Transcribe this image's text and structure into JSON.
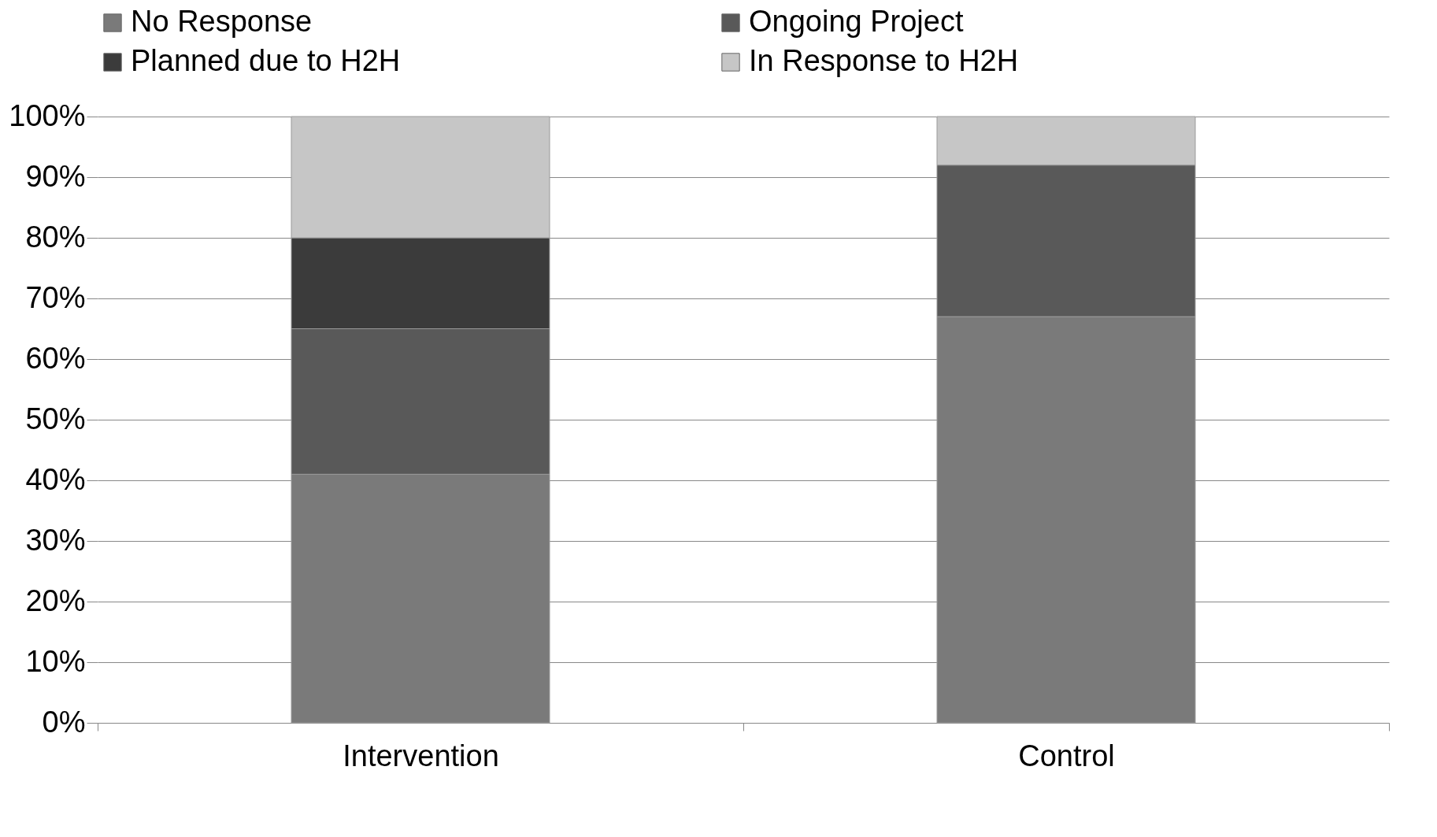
{
  "chart_data": {
    "type": "bar",
    "stacked": true,
    "categories": [
      "Intervention",
      "Control"
    ],
    "series": [
      {
        "name": "No Response",
        "color": "#7a7a7a",
        "values": [
          41,
          67
        ]
      },
      {
        "name": "Ongoing Project",
        "color": "#595959",
        "values": [
          24,
          25
        ]
      },
      {
        "name": "Planned due to H2H",
        "color": "#3b3b3b",
        "values": [
          15,
          0
        ]
      },
      {
        "name": "In Response to H2H",
        "color": "#c6c6c6",
        "values": [
          20,
          8
        ]
      }
    ],
    "ylim": [
      0,
      100
    ],
    "yticks": [
      {
        "value": 0,
        "label": "0%"
      },
      {
        "value": 10,
        "label": "10%"
      },
      {
        "value": 20,
        "label": "20%"
      },
      {
        "value": 30,
        "label": "30%"
      },
      {
        "value": 40,
        "label": "40%"
      },
      {
        "value": 50,
        "label": "50%"
      },
      {
        "value": 60,
        "label": "60%"
      },
      {
        "value": 70,
        "label": "70%"
      },
      {
        "value": 80,
        "label": "80%"
      },
      {
        "value": 90,
        "label": "90%"
      },
      {
        "value": 100,
        "label": "100%"
      }
    ],
    "grid": "y",
    "legend": "top"
  }
}
